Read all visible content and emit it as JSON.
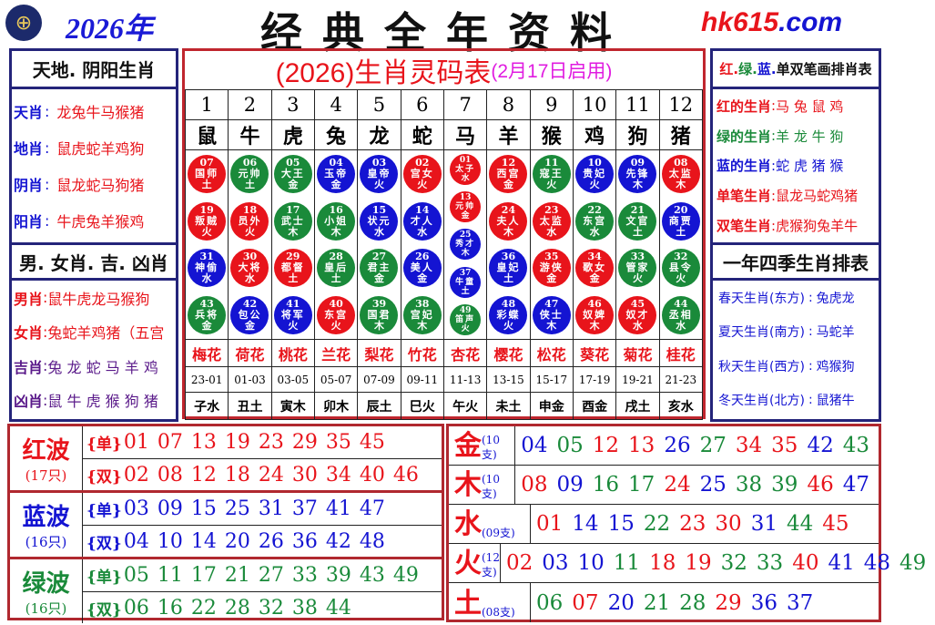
{
  "header": {
    "year": "2026年",
    "title": "经典全年资料",
    "site_a": "hk615",
    "site_b": ".com",
    "logo_icon": "hkjc-logo"
  },
  "colors": {
    "red": "#e8141b",
    "blue": "#1414d2",
    "green": "#1a8a3a",
    "purple": "#5a1a8a",
    "magenta": "#e01ce0"
  },
  "left": {
    "title1": "天地. 阴阳生肖",
    "items1": [
      {
        "k": "天肖",
        "v": "龙兔牛马猴猪"
      },
      {
        "k": "地肖",
        "v": "鼠虎蛇羊鸡狗"
      },
      {
        "k": "阴肖",
        "v": "鼠龙蛇马狗猪"
      },
      {
        "k": "阳肖",
        "v": "牛虎兔羊猴鸡"
      }
    ],
    "title2": "男. 女肖. 吉. 凶肖",
    "items2": [
      {
        "k": "男肖",
        "v": "鼠牛虎龙马猴狗",
        "c": "red"
      },
      {
        "k": "女肖",
        "v": "兔蛇羊鸡猪（五宫",
        "c": "red"
      },
      {
        "k": "吉肖",
        "v": "兔 龙 蛇 马 羊 鸡",
        "c": "purple"
      },
      {
        "k": "凶肖",
        "v": "鼠 牛 虎 猴 狗 猪",
        "c": "purple"
      }
    ]
  },
  "center": {
    "title": "(2026)生肖灵码表",
    "subtitle": "(2月17日启用)",
    "columns": [
      {
        "n": "1",
        "z": "鼠",
        "f": "梅花",
        "t": "23-01",
        "b": "子水",
        "balls": [
          [
            "07",
            "国师",
            "土",
            "red"
          ],
          [
            "19",
            "叛贼",
            "火",
            "red"
          ],
          [
            "31",
            "神偷",
            "水",
            "blue"
          ],
          [
            "43",
            "兵将",
            "金",
            "green"
          ]
        ]
      },
      {
        "n": "2",
        "z": "牛",
        "f": "荷花",
        "t": "01-03",
        "b": "丑土",
        "balls": [
          [
            "06",
            "元帅",
            "土",
            "green"
          ],
          [
            "18",
            "员外",
            "火",
            "red"
          ],
          [
            "30",
            "大将",
            "水",
            "red"
          ],
          [
            "42",
            "包公",
            "金",
            "blue"
          ]
        ]
      },
      {
        "n": "3",
        "z": "虎",
        "f": "桃花",
        "t": "03-05",
        "b": "寅木",
        "balls": [
          [
            "05",
            "大王",
            "金",
            "green"
          ],
          [
            "17",
            "武士",
            "木",
            "green"
          ],
          [
            "29",
            "都督",
            "土",
            "red"
          ],
          [
            "41",
            "将军",
            "火",
            "blue"
          ]
        ]
      },
      {
        "n": "4",
        "z": "兔",
        "f": "兰花",
        "t": "05-07",
        "b": "卯木",
        "balls": [
          [
            "04",
            "玉帝",
            "金",
            "blue"
          ],
          [
            "16",
            "小姐",
            "木",
            "green"
          ],
          [
            "28",
            "皇后",
            "土",
            "green"
          ],
          [
            "40",
            "东宫",
            "火",
            "red"
          ]
        ]
      },
      {
        "n": "5",
        "z": "龙",
        "f": "梨花",
        "t": "07-09",
        "b": "辰土",
        "balls": [
          [
            "03",
            "皇帝",
            "火",
            "blue"
          ],
          [
            "15",
            "状元",
            "水",
            "blue"
          ],
          [
            "27",
            "君主",
            "金",
            "green"
          ],
          [
            "39",
            "国君",
            "木",
            "green"
          ]
        ]
      },
      {
        "n": "6",
        "z": "蛇",
        "f": "竹花",
        "t": "09-11",
        "b": "巳火",
        "balls": [
          [
            "02",
            "宫女",
            "火",
            "red"
          ],
          [
            "14",
            "才人",
            "水",
            "blue"
          ],
          [
            "26",
            "美人",
            "金",
            "blue"
          ],
          [
            "38",
            "宫妃",
            "木",
            "green"
          ]
        ]
      },
      {
        "n": "7",
        "z": "马",
        "f": "杏花",
        "t": "11-13",
        "b": "午火",
        "balls": [
          [
            "01",
            "太子",
            "水",
            "red"
          ],
          [
            "13",
            "元帅",
            "金",
            "red"
          ],
          [
            "25",
            "秀才",
            "木",
            "blue"
          ],
          [
            "37",
            "牛童",
            "土",
            "blue"
          ],
          [
            "49",
            "笛声",
            "火",
            "green"
          ]
        ]
      },
      {
        "n": "8",
        "z": "羊",
        "f": "樱花",
        "t": "13-15",
        "b": "未土",
        "balls": [
          [
            "12",
            "西宫",
            "金",
            "red"
          ],
          [
            "24",
            "夫人",
            "木",
            "red"
          ],
          [
            "36",
            "皇妃",
            "土",
            "blue"
          ],
          [
            "48",
            "彩蝶",
            "火",
            "blue"
          ]
        ]
      },
      {
        "n": "9",
        "z": "猴",
        "f": "松花",
        "t": "15-17",
        "b": "申金",
        "balls": [
          [
            "11",
            "寇王",
            "火",
            "green"
          ],
          [
            "23",
            "太监",
            "水",
            "red"
          ],
          [
            "35",
            "游侠",
            "金",
            "red"
          ],
          [
            "47",
            "侠士",
            "木",
            "blue"
          ]
        ]
      },
      {
        "n": "10",
        "z": "鸡",
        "f": "葵花",
        "t": "17-19",
        "b": "酉金",
        "balls": [
          [
            "10",
            "贵妃",
            "火",
            "blue"
          ],
          [
            "22",
            "东宫",
            "水",
            "green"
          ],
          [
            "34",
            "歌女",
            "金",
            "red"
          ],
          [
            "46",
            "奴婢",
            "木",
            "red"
          ]
        ]
      },
      {
        "n": "11",
        "z": "狗",
        "f": "菊花",
        "t": "19-21",
        "b": "戌土",
        "balls": [
          [
            "09",
            "先锋",
            "木",
            "blue"
          ],
          [
            "21",
            "文官",
            "土",
            "green"
          ],
          [
            "33",
            "管家",
            "火",
            "green"
          ],
          [
            "45",
            "奴才",
            "水",
            "red"
          ]
        ]
      },
      {
        "n": "12",
        "z": "猪",
        "f": "桂花",
        "t": "21-23",
        "b": "亥水",
        "balls": [
          [
            "08",
            "太监",
            "木",
            "red"
          ],
          [
            "20",
            "商贾",
            "土",
            "blue"
          ],
          [
            "32",
            "县令",
            "火",
            "green"
          ],
          [
            "44",
            "丞相",
            "水",
            "green"
          ]
        ]
      }
    ]
  },
  "right": {
    "title1_parts": [
      {
        "t": "红",
        "c": "red"
      },
      {
        "t": ". ",
        "c": "red"
      },
      {
        "t": "绿",
        "c": "green"
      },
      {
        "t": ". ",
        "c": "green"
      },
      {
        "t": "蓝",
        "c": "blue"
      },
      {
        "t": ". ",
        "c": "blue"
      },
      {
        "t": "单双笔画排肖表",
        "c": "black"
      }
    ],
    "items1": [
      {
        "k": "红的生肖",
        "v": "马 兔 鼠 鸡",
        "c": "red"
      },
      {
        "k": "绿的生肖",
        "v": "羊 龙 牛 狗",
        "c": "green"
      },
      {
        "k": "蓝的生肖",
        "v": "蛇 虎 猪 猴",
        "c": "blue"
      },
      {
        "k": "单笔生肖",
        "v": "鼠龙马蛇鸡猪",
        "c": "red"
      },
      {
        "k": "双笔生肖",
        "v": "虎猴狗兔羊牛",
        "c": "red"
      }
    ],
    "title2": "一年四季生肖排表",
    "items2": [
      {
        "k": "春天生肖(东方)",
        "v": "兔虎龙"
      },
      {
        "k": "夏天生肖(南方)",
        "v": "马蛇羊"
      },
      {
        "k": "秋天生肖(西方)",
        "v": "鸡猴狗"
      },
      {
        "k": "冬天生肖(北方)",
        "v": "鼠猪牛"
      }
    ]
  },
  "waves": [
    {
      "name": "红波",
      "count": "(17只)",
      "c": "red",
      "lines": [
        {
          "tag": "{单}",
          "nums": [
            "01",
            "07",
            "13",
            "19",
            "23",
            "29",
            "35",
            "45"
          ]
        },
        {
          "tag": "{双}",
          "nums": [
            "02",
            "08",
            "12",
            "18",
            "24",
            "30",
            "34",
            "40",
            "46"
          ]
        }
      ]
    },
    {
      "name": "蓝波",
      "count": "(16只)",
      "c": "blue",
      "lines": [
        {
          "tag": "{单}",
          "nums": [
            "03",
            "09",
            "15",
            "25",
            "31",
            "37",
            "41",
            "47"
          ]
        },
        {
          "tag": "{双}",
          "nums": [
            "04",
            "10",
            "14",
            "20",
            "26",
            "36",
            "42",
            "48"
          ]
        }
      ]
    },
    {
      "name": "绿波",
      "count": "(16只)",
      "c": "green",
      "lines": [
        {
          "tag": "{单}",
          "nums": [
            "05",
            "11",
            "17",
            "21",
            "27",
            "33",
            "39",
            "43",
            "49"
          ]
        },
        {
          "tag": "{双}",
          "nums": [
            "06",
            "16",
            "22",
            "28",
            "32",
            "38",
            "44"
          ]
        }
      ]
    }
  ],
  "elements": [
    {
      "name": "金",
      "count": "(10支)",
      "nums": [
        "04",
        "05",
        "12",
        "13",
        "26",
        "27",
        "34",
        "35",
        "42",
        "43"
      ]
    },
    {
      "name": "木",
      "count": "(10支)",
      "nums": [
        "08",
        "09",
        "16",
        "17",
        "24",
        "25",
        "38",
        "39",
        "46",
        "47"
      ]
    },
    {
      "name": "水",
      "count": "(09支)",
      "nums": [
        "01",
        "14",
        "15",
        "22",
        "23",
        "30",
        "31",
        "44",
        "45"
      ]
    },
    {
      "name": "火",
      "count": "(12支)",
      "nums": [
        "02",
        "03",
        "10",
        "11",
        "18",
        "19",
        "32",
        "33",
        "40",
        "41",
        "48",
        "49"
      ]
    },
    {
      "name": "土",
      "count": "(08支)",
      "nums": [
        "06",
        "07",
        "20",
        "21",
        "28",
        "29",
        "36",
        "37"
      ]
    }
  ]
}
